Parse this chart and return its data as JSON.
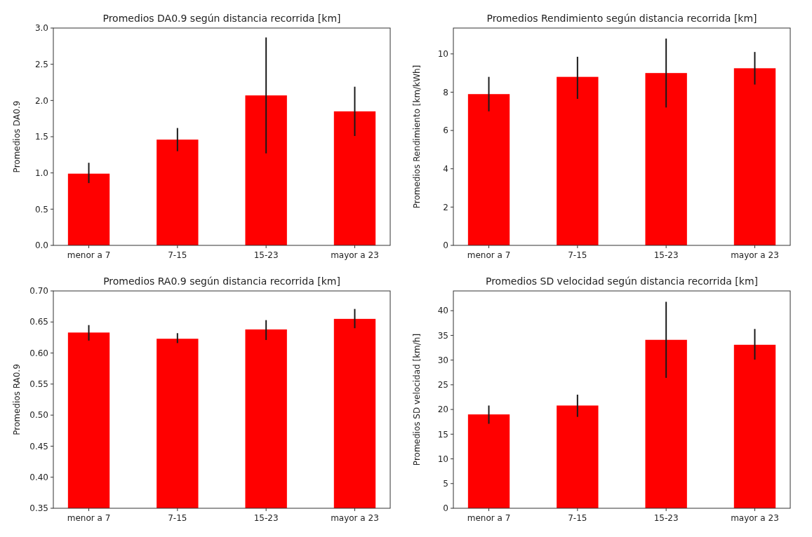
{
  "chart_data": [
    {
      "type": "bar",
      "title": "Promedios DA0.9 según distancia recorrida [km]",
      "ylabel": "Promedios DA0.9",
      "categories": [
        "menor a 7",
        "7-15",
        "15-23",
        "mayor a 23"
      ],
      "values": [
        0.99,
        1.46,
        2.07,
        1.85
      ],
      "errors": [
        [
          0.86,
          1.14
        ],
        [
          1.3,
          1.62
        ],
        [
          1.27,
          2.87
        ],
        [
          1.51,
          2.19
        ]
      ],
      "color": "#ff0000",
      "ylim": [
        0,
        3.0
      ],
      "yticks": [
        {
          "value": 0,
          "label": "0.0"
        },
        0.5,
        {
          "value": 1,
          "label": "1.0"
        },
        1.5,
        {
          "value": 2,
          "label": "2.0"
        },
        2.5,
        {
          "value": 3,
          "label": "3.0"
        }
      ],
      "grid": false
    },
    {
      "type": "bar",
      "title": "Promedios Rendimiento según distancia recorrida [km]",
      "ylabel": "Promedios Rendimiento [km/kWh]",
      "categories": [
        "menor a 7",
        "7-15",
        "15-23",
        "mayor a 23"
      ],
      "values": [
        7.9,
        8.8,
        9.0,
        9.25
      ],
      "errors": [
        [
          7.0,
          8.8
        ],
        [
          7.65,
          9.85
        ],
        [
          7.2,
          10.8
        ],
        [
          8.4,
          10.1
        ]
      ],
      "color": "#ff0000",
      "ylim": [
        0,
        11.35
      ],
      "yticks": [
        0,
        2,
        4,
        6,
        8,
        10
      ],
      "grid": false
    },
    {
      "type": "bar",
      "title": "Promedios RA0.9 según distancia recorrida [km]",
      "ylabel": "Promedios RA0.9",
      "categories": [
        "menor a 7",
        "7-15",
        "15-23",
        "mayor a 23"
      ],
      "values": [
        0.633,
        0.623,
        0.638,
        0.655
      ],
      "errors": [
        [
          0.62,
          0.645
        ],
        [
          0.616,
          0.632
        ],
        [
          0.621,
          0.653
        ],
        [
          0.64,
          0.671
        ]
      ],
      "color": "#ff0000",
      "ylim": [
        0.35,
        0.7
      ],
      "yticks": [
        {
          "value": 0.35,
          "label": "0.35"
        },
        {
          "value": 0.4,
          "label": "0.40"
        },
        {
          "value": 0.45,
          "label": "0.45"
        },
        {
          "value": 0.5,
          "label": "0.50"
        },
        {
          "value": 0.55,
          "label": "0.55"
        },
        {
          "value": 0.6,
          "label": "0.60"
        },
        {
          "value": 0.65,
          "label": "0.65"
        },
        {
          "value": 0.7,
          "label": "0.70"
        }
      ],
      "grid": false
    },
    {
      "type": "bar",
      "title": "Promedios SD velocidad según distancia recorrida [km]",
      "ylabel": "Promedios SD velocidad [km/h]",
      "categories": [
        "menor a 7",
        "7-15",
        "15-23",
        "mayor a 23"
      ],
      "values": [
        19.0,
        20.8,
        34.1,
        33.1
      ],
      "errors": [
        [
          17.1,
          20.8
        ],
        [
          18.5,
          23.0
        ],
        [
          26.4,
          41.8
        ],
        [
          30.1,
          36.3
        ]
      ],
      "color": "#ff0000",
      "ylim": [
        0,
        44
      ],
      "yticks": [
        0,
        5,
        10,
        15,
        20,
        25,
        30,
        35,
        40
      ],
      "grid": false
    }
  ]
}
